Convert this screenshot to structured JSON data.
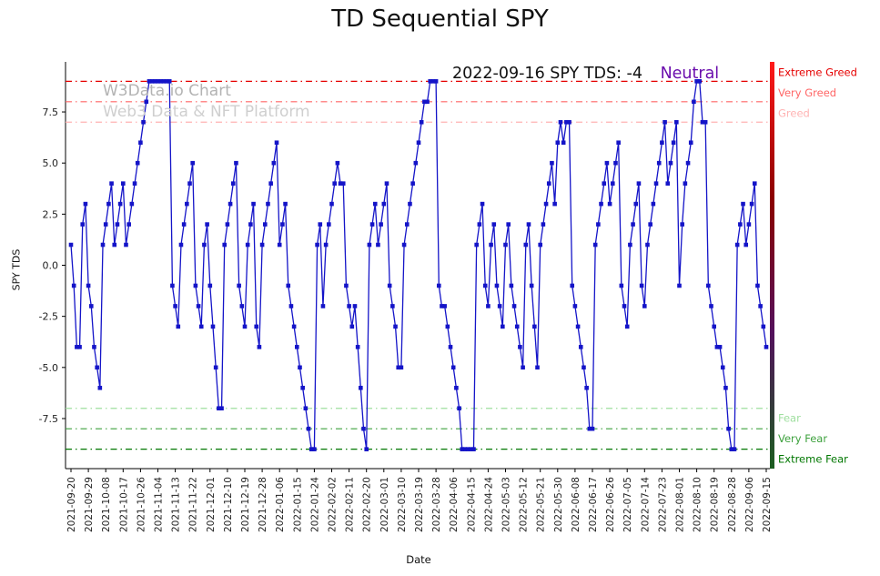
{
  "page": {
    "title": "TD Sequential SPY"
  },
  "watermark": {
    "line1": "W3Data.io Chart",
    "line2": "Web3 Data & NFT Platform"
  },
  "annotation": {
    "text": "2022-09-16 SPY TDS: -4",
    "sentiment": "Neutral",
    "sentiment_color": "#6a0dad"
  },
  "chart_data": {
    "type": "line",
    "title": "TD Sequential SPY",
    "xlabel": "Date",
    "ylabel": "SPY TDS",
    "ylim": [
      -9.95,
      9.95
    ],
    "grid": false,
    "marker": "square",
    "line_color": "#1414c8",
    "y_tick_values": [
      7.5,
      5.0,
      2.5,
      0.0,
      -2.5,
      -5.0,
      -7.5
    ],
    "y_tick_labels": [
      "7.5",
      "5.0",
      "2.5",
      "0.0",
      "-2.5",
      "-5.0",
      "-7.5"
    ],
    "x_tick_labels": [
      "2021-09-20",
      "2021-09-29",
      "2021-10-08",
      "2021-10-17",
      "2021-10-26",
      "2021-11-04",
      "2021-11-13",
      "2021-11-22",
      "2021-12-01",
      "2021-12-10",
      "2021-12-19",
      "2021-12-28",
      "2022-01-06",
      "2022-01-15",
      "2022-01-24",
      "2022-02-02",
      "2022-02-11",
      "2022-02-20",
      "2022-03-01",
      "2022-03-10",
      "2022-03-19",
      "2022-03-28",
      "2022-04-06",
      "2022-04-15",
      "2022-04-24",
      "2022-05-03",
      "2022-05-12",
      "2022-05-21",
      "2022-05-30",
      "2022-06-08",
      "2022-06-17",
      "2022-06-26",
      "2022-07-05",
      "2022-07-14",
      "2022-07-23",
      "2022-08-01",
      "2022-08-10",
      "2022-08-19",
      "2022-08-28",
      "2022-09-06",
      "2022-09-15"
    ],
    "points_per_tick": 6,
    "values": [
      1,
      -1,
      -4,
      -4,
      2,
      3,
      -1,
      -2,
      -4,
      -5,
      -6,
      1,
      2,
      3,
      4,
      1,
      2,
      3,
      4,
      1,
      2,
      3,
      4,
      5,
      6,
      7,
      8,
      9,
      9,
      9,
      9,
      9,
      9,
      9,
      9,
      -1,
      -2,
      -3,
      1,
      2,
      3,
      4,
      5,
      -1,
      -2,
      -3,
      1,
      2,
      -1,
      -3,
      -5,
      -7,
      -7,
      1,
      2,
      3,
      4,
      5,
      -1,
      -2,
      -3,
      1,
      2,
      3,
      -3,
      -4,
      1,
      2,
      3,
      4,
      5,
      6,
      1,
      2,
      3,
      -1,
      -2,
      -3,
      -4,
      -5,
      -6,
      -7,
      -8,
      -9,
      -9,
      1,
      2,
      -2,
      1,
      2,
      3,
      4,
      5,
      4,
      4,
      -1,
      -2,
      -3,
      -2,
      -4,
      -6,
      -8,
      -9,
      1,
      2,
      3,
      1,
      2,
      3,
      4,
      -1,
      -2,
      -3,
      -5,
      -5,
      1,
      2,
      3,
      4,
      5,
      6,
      7,
      8,
      8,
      9,
      9,
      9,
      -1,
      -2,
      -2,
      -3,
      -4,
      -5,
      -6,
      -7,
      -9,
      -9,
      -9,
      -9,
      -9,
      1,
      2,
      3,
      -1,
      -2,
      1,
      2,
      -1,
      -2,
      -3,
      1,
      2,
      -1,
      -2,
      -3,
      -4,
      -5,
      1,
      2,
      -1,
      -3,
      -5,
      1,
      2,
      3,
      4,
      5,
      3,
      6,
      7,
      6,
      7,
      7,
      -1,
      -2,
      -3,
      -4,
      -5,
      -6,
      -8,
      -8,
      1,
      2,
      3,
      4,
      5,
      3,
      4,
      5,
      6,
      -1,
      -2,
      -3,
      1,
      2,
      3,
      4,
      -1,
      -2,
      1,
      2,
      3,
      4,
      5,
      6,
      7,
      4,
      5,
      6,
      7,
      -1,
      2,
      4,
      5,
      6,
      8,
      9,
      9,
      7,
      7,
      -1,
      -2,
      -3,
      -4,
      -4,
      -5,
      -6,
      -8,
      -9,
      -9,
      1,
      2,
      3,
      1,
      2,
      3,
      4,
      -1,
      -2,
      -3,
      -4
    ],
    "thresholds": [
      {
        "value": 9,
        "label": "Extreme Greed",
        "color": "#e60000"
      },
      {
        "value": 8,
        "label": "Very Greed",
        "color": "#ff6666"
      },
      {
        "value": 7,
        "label": "Greed",
        "color": "#ffb3b3"
      },
      {
        "value": -7,
        "label": "Fear",
        "color": "#9fdf9f"
      },
      {
        "value": -8,
        "label": "Very Fear",
        "color": "#3da13d"
      },
      {
        "value": -9,
        "label": "Extreme Fear",
        "color": "#007700"
      }
    ],
    "gauge_colors": [
      "#ff1a1a",
      "#8b0000",
      "#53115c",
      "#1b5e20"
    ]
  }
}
